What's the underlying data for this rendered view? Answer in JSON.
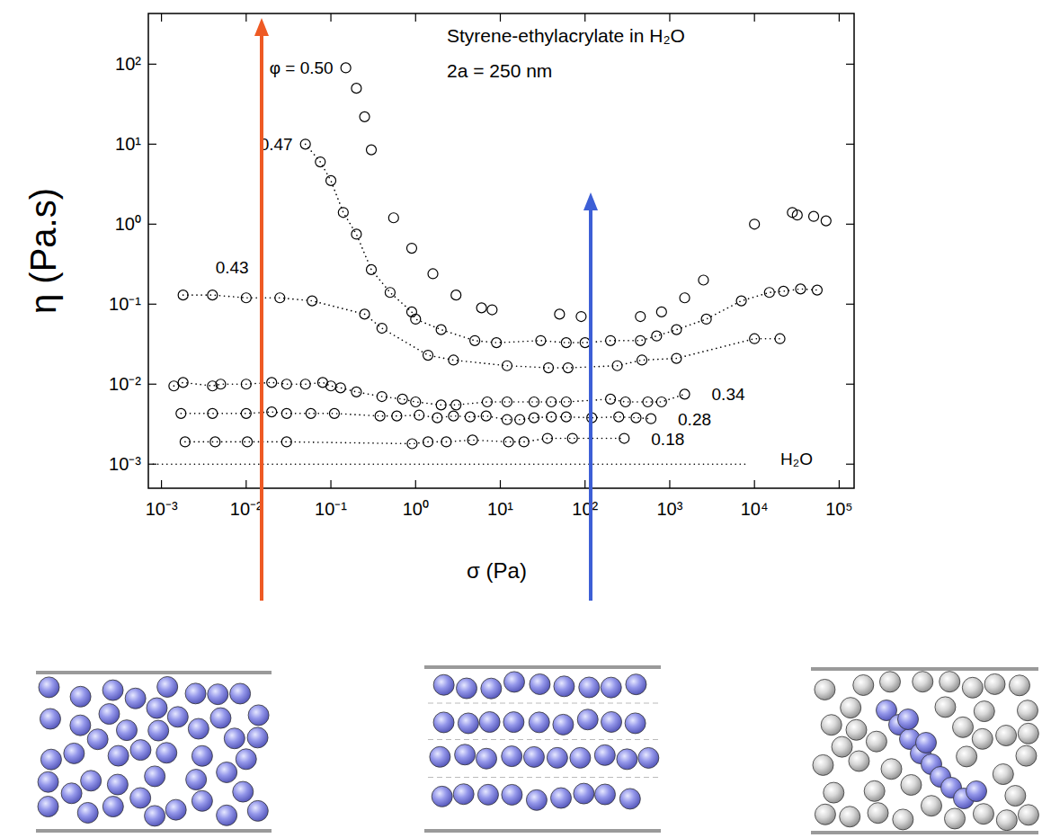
{
  "chart_data": {
    "type": "scatter",
    "title": "Styrene-ethylacrylate in H₂O",
    "subtitle": "2a = 250 nm",
    "x_label": "σ (Pa)",
    "y_label": "η (Pa.s)",
    "log": true,
    "xlim": [
      0.0007,
      150000
    ],
    "ylim": [
      0.0005,
      430
    ],
    "xticks": [
      {
        "value": 0.001,
        "label": "10⁻³"
      },
      {
        "value": 0.01,
        "label": "10⁻²"
      },
      {
        "value": 0.1,
        "label": "10⁻¹"
      },
      {
        "value": 1,
        "label": "10⁰"
      },
      {
        "value": 10,
        "label": "10¹"
      },
      {
        "value": 100,
        "label": "10²"
      },
      {
        "value": 1000,
        "label": "10³"
      },
      {
        "value": 10000,
        "label": "10⁴"
      },
      {
        "value": 100000,
        "label": "10⁵"
      }
    ],
    "yticks": [
      {
        "value": 0.001,
        "label": "10⁻³"
      },
      {
        "value": 0.01,
        "label": "10⁻²"
      },
      {
        "value": 0.1,
        "label": "10⁻¹"
      },
      {
        "value": 1,
        "label": "10⁰"
      },
      {
        "value": 10,
        "label": "10¹"
      },
      {
        "value": 100,
        "label": "10²"
      }
    ],
    "series": [
      {
        "name": "φ = 0.50",
        "color": "#000000",
        "marker": "circle",
        "line_style": "none",
        "x": [
          0.15,
          0.2,
          0.25,
          0.3,
          0.55,
          0.9,
          1.6,
          3,
          6,
          8,
          50,
          90,
          450,
          800,
          1500,
          2500,
          10000,
          28000,
          32000,
          50000,
          70000
        ],
        "values": [
          90,
          50,
          22,
          8.5,
          1.2,
          0.5,
          0.24,
          0.13,
          0.09,
          0.085,
          0.075,
          0.07,
          0.07,
          0.08,
          0.12,
          0.2,
          1,
          1.4,
          1.3,
          1.25,
          1.1
        ]
      },
      {
        "name": "0.47",
        "color": "#000000",
        "marker": "circle",
        "line_style": "dotted",
        "x": [
          0.05,
          0.075,
          0.1,
          0.14,
          0.2,
          0.3,
          0.5,
          0.9,
          1,
          2,
          5,
          9,
          30,
          60,
          100,
          200,
          450,
          700,
          1200,
          2700,
          7000,
          15000,
          22000,
          35000,
          55000
        ],
        "values": [
          10,
          6,
          3.5,
          1.4,
          0.75,
          0.27,
          0.14,
          0.08,
          0.065,
          0.048,
          0.035,
          0.033,
          0.035,
          0.033,
          0.033,
          0.035,
          0.035,
          0.04,
          0.048,
          0.065,
          0.11,
          0.14,
          0.145,
          0.155,
          0.15
        ]
      },
      {
        "name": "0.43",
        "color": "#000000",
        "marker": "circle",
        "line_style": "dotted",
        "x": [
          0.0018,
          0.004,
          0.01,
          0.025,
          0.06,
          0.25,
          0.4,
          1.4,
          2.8,
          12,
          37,
          63,
          240,
          470,
          1200,
          10000,
          20000
        ],
        "values": [
          0.13,
          0.13,
          0.12,
          0.12,
          0.11,
          0.075,
          0.05,
          0.023,
          0.02,
          0.017,
          0.016,
          0.016,
          0.017,
          0.02,
          0.021,
          0.037,
          0.037
        ]
      },
      {
        "name": "0.34",
        "color": "#000000",
        "marker": "circle",
        "line_style": "dotted",
        "x": [
          0.0014,
          0.0018,
          0.004,
          0.005,
          0.01,
          0.02,
          0.03,
          0.05,
          0.08,
          0.1,
          0.13,
          0.2,
          0.4,
          0.7,
          1,
          2,
          3,
          7,
          12,
          25,
          40,
          60,
          200,
          300,
          550,
          800,
          1500
        ],
        "values": [
          0.0095,
          0.0105,
          0.0095,
          0.01,
          0.01,
          0.0105,
          0.01,
          0.01,
          0.0105,
          0.0095,
          0.009,
          0.008,
          0.007,
          0.0065,
          0.006,
          0.0055,
          0.0055,
          0.006,
          0.006,
          0.006,
          0.006,
          0.006,
          0.0065,
          0.006,
          0.006,
          0.006,
          0.0075
        ]
      },
      {
        "name": "0.28",
        "color": "#000000",
        "marker": "circle",
        "line_style": "dotted",
        "x": [
          0.0017,
          0.004,
          0.01,
          0.02,
          0.03,
          0.058,
          0.11,
          0.38,
          0.6,
          1.1,
          1.8,
          2.8,
          4.4,
          6.8,
          12,
          17,
          25,
          40,
          60,
          120,
          250,
          400,
          600
        ],
        "values": [
          0.0043,
          0.0043,
          0.0043,
          0.0045,
          0.0043,
          0.0043,
          0.0043,
          0.004,
          0.004,
          0.0041,
          0.0038,
          0.004,
          0.0039,
          0.004,
          0.0036,
          0.0036,
          0.0038,
          0.0039,
          0.0039,
          0.0038,
          0.0039,
          0.0038,
          0.0037
        ]
      },
      {
        "name": "0.18",
        "color": "#000000",
        "marker": "circle",
        "line_style": "dotted",
        "x": [
          0.0019,
          0.0043,
          0.0103,
          0.03,
          0.91,
          1.4,
          2.3,
          4.7,
          12.5,
          19,
          36,
          71,
          290
        ],
        "values": [
          0.0019,
          0.0019,
          0.0019,
          0.0019,
          0.0018,
          0.0019,
          0.0019,
          0.002,
          0.0019,
          0.0019,
          0.0021,
          0.0021,
          0.0021
        ]
      },
      {
        "name": "H₂O",
        "color": "#000000",
        "marker": "none",
        "line_style": "dotted",
        "x": [
          0.0008,
          8000
        ],
        "values": [
          0.001,
          0.001
        ]
      }
    ]
  }
}
